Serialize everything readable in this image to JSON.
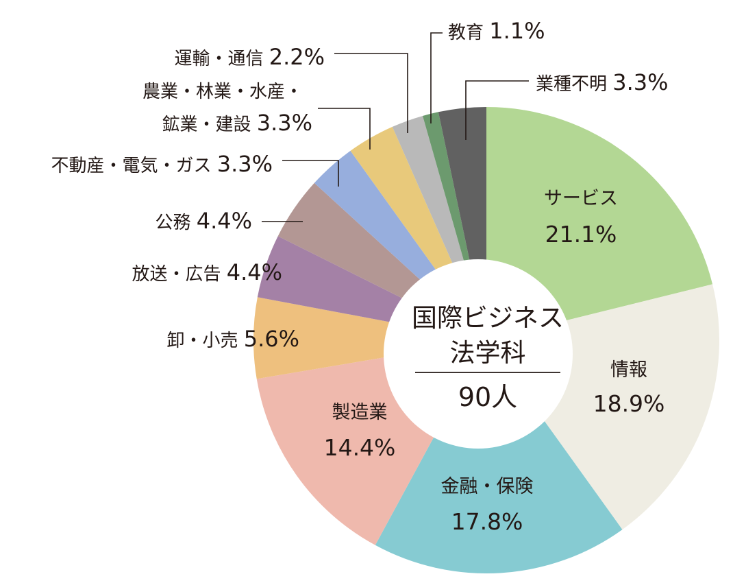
{
  "chart_data": {
    "type": "pie",
    "variant": "donut",
    "center_label": {
      "title_line1": "国際ビジネス",
      "title_line2": "法学科",
      "total": "90人"
    },
    "slices": [
      {
        "label": "サービス",
        "value": 21.1,
        "value_text": "21.1%",
        "color": "#b3d794",
        "placement": "inside"
      },
      {
        "label": "情報",
        "value": 18.9,
        "value_text": "18.9%",
        "color": "#efede3",
        "placement": "inside"
      },
      {
        "label": "金融・保険",
        "value": 17.8,
        "value_text": "17.8%",
        "color": "#86cbd2",
        "placement": "inside"
      },
      {
        "label": "製造業",
        "value": 14.4,
        "value_text": "14.4%",
        "color": "#efb9ad",
        "placement": "inside"
      },
      {
        "label": "卸・小売",
        "value": 5.6,
        "value_text": "5.6%",
        "color": "#eec07e",
        "placement": "outside"
      },
      {
        "label": "放送・広告",
        "value": 4.4,
        "value_text": "4.4%",
        "color": "#a481a6",
        "placement": "outside"
      },
      {
        "label": "公務",
        "value": 4.4,
        "value_text": "4.4%",
        "color": "#b39794",
        "placement": "outside"
      },
      {
        "label": "不動産・電気・ガス",
        "value": 3.3,
        "value_text": "3.3%",
        "color": "#97aedd",
        "placement": "outside"
      },
      {
        "label": "農業・林業・水産・鉱業・建設",
        "label_line1": "農業・林業・水産・",
        "label_line2": "鉱業・建設",
        "value": 3.3,
        "value_text": "3.3%",
        "color": "#e8c97b",
        "placement": "outside"
      },
      {
        "label": "運輸・通信",
        "value": 2.2,
        "value_text": "2.2%",
        "color": "#b9b9b9",
        "placement": "outside"
      },
      {
        "label": "教育",
        "value": 1.1,
        "value_text": "1.1%",
        "color": "#6c9a6e",
        "placement": "outside"
      },
      {
        "label": "業種不明",
        "value": 3.3,
        "value_text": "3.3%",
        "color": "#616161",
        "placement": "outside"
      }
    ]
  }
}
